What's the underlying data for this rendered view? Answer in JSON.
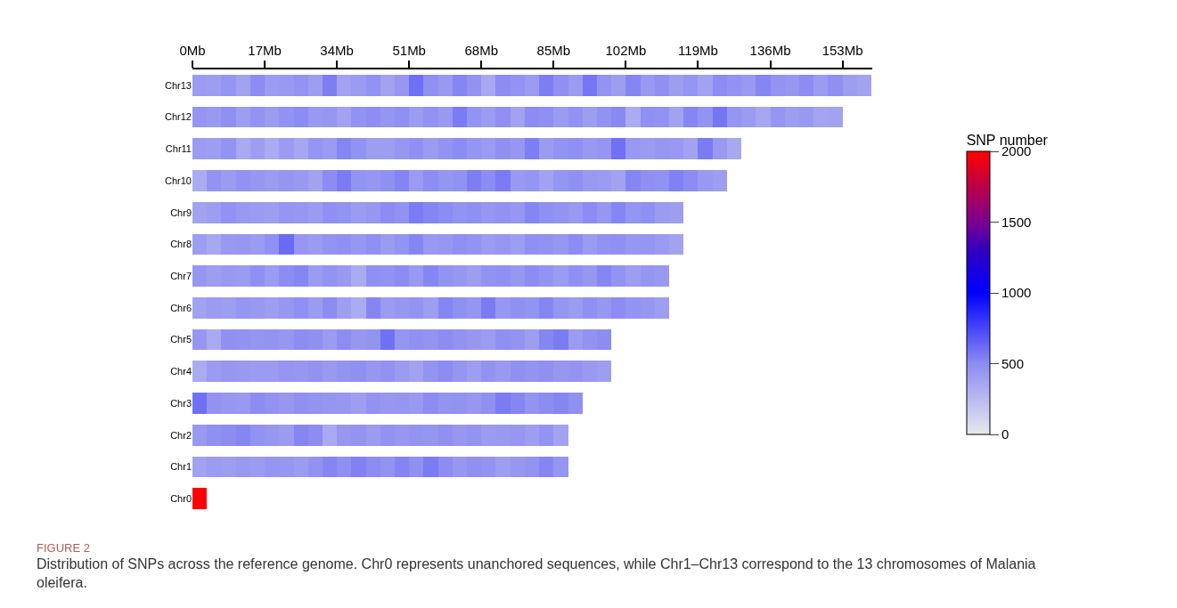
{
  "chart_data": {
    "type": "heatmap",
    "x": [
      1.7,
      5.1,
      8.5,
      11.9,
      15.3,
      18.7,
      22.1,
      25.5,
      28.9,
      32.3,
      35.7,
      39.1,
      42.5,
      45.9,
      49.3,
      52.7,
      56.1,
      59.5,
      62.9,
      66.3,
      69.7,
      73.1,
      76.5,
      79.9,
      83.3,
      86.7,
      90.1,
      93.5,
      96.9,
      100.3,
      103.7,
      107.1,
      110.5,
      113.9,
      117.3,
      120.7,
      124.1,
      127.5,
      130.9,
      134.3,
      137.7,
      141.1,
      144.5,
      147.9,
      151.3,
      154.7,
      158.1
    ],
    "y_categories": [
      "Chr13",
      "Chr12",
      "Chr11",
      "Chr10",
      "Chr9",
      "Chr8",
      "Chr7",
      "Chr6",
      "Chr5",
      "Chr4",
      "Chr3",
      "Chr2",
      "Chr1",
      "Chr0"
    ],
    "cells": [
      [
        420,
        400,
        450,
        380,
        500,
        420,
        430,
        460,
        400,
        550,
        380,
        420,
        470,
        380,
        440,
        600,
        480,
        430,
        520,
        470,
        350,
        500,
        460,
        420,
        550,
        480,
        420,
        580,
        460,
        400,
        520,
        430,
        480,
        400,
        450,
        380,
        500,
        470,
        430,
        520,
        460,
        440,
        500,
        420,
        480,
        400,
        380
      ],
      [
        450,
        430,
        480,
        400,
        460,
        420,
        470,
        500,
        430,
        440,
        380,
        470,
        490,
        450,
        480,
        420,
        470,
        430,
        560,
        460,
        420,
        480,
        380,
        500,
        480,
        420,
        470,
        400,
        470,
        510,
        330,
        480,
        470,
        380,
        520,
        460,
        580,
        450,
        420,
        360,
        450,
        400,
        430,
        370,
        380
      ],
      [
        420,
        400,
        460,
        340,
        400,
        330,
        420,
        360,
        450,
        420,
        520,
        470,
        410,
        400,
        440,
        480,
        420,
        460,
        500,
        450,
        420,
        480,
        440,
        550,
        420,
        460,
        480,
        430,
        450,
        600,
        430,
        420,
        440,
        430,
        380,
        560,
        430,
        350
      ],
      [
        330,
        460,
        420,
        470,
        440,
        420,
        450,
        430,
        380,
        500,
        560,
        460,
        440,
        480,
        530,
        420,
        490,
        450,
        470,
        550,
        500,
        560,
        430,
        450,
        380,
        450,
        480,
        430,
        420,
        380,
        520,
        480,
        470,
        540,
        500,
        430,
        400
      ],
      [
        380,
        400,
        470,
        430,
        420,
        400,
        450,
        440,
        420,
        480,
        460,
        420,
        440,
        500,
        470,
        560,
        520,
        500,
        460,
        480,
        440,
        470,
        440,
        520,
        480,
        460,
        430,
        500,
        440,
        520,
        450,
        480,
        420,
        400
      ],
      [
        400,
        350,
        430,
        440,
        420,
        480,
        620,
        440,
        420,
        460,
        480,
        440,
        480,
        420,
        460,
        520,
        430,
        440,
        480,
        460,
        420,
        440,
        400,
        480,
        470,
        440,
        500,
        420,
        470,
        480,
        440,
        450,
        420,
        380
      ],
      [
        440,
        400,
        430,
        420,
        480,
        420,
        500,
        520,
        420,
        460,
        430,
        330,
        480,
        470,
        500,
        430,
        520,
        460,
        440,
        400,
        470,
        480,
        440,
        500,
        460,
        420,
        480,
        440,
        520,
        460,
        400,
        450,
        430
      ],
      [
        380,
        420,
        400,
        450,
        430,
        410,
        440,
        480,
        420,
        500,
        400,
        330,
        520,
        420,
        440,
        460,
        400,
        520,
        480,
        450,
        560,
        440,
        480,
        460,
        520,
        450,
        420,
        480,
        440,
        500,
        460,
        440,
        400
      ],
      [
        440,
        340,
        480,
        470,
        450,
        460,
        440,
        500,
        480,
        420,
        500,
        440,
        460,
        600,
        450,
        480,
        460,
        500,
        470,
        440,
        420,
        480,
        460,
        400,
        520,
        560,
        420,
        470,
        500
      ],
      [
        330,
        420,
        440,
        430,
        420,
        420,
        450,
        440,
        470,
        430,
        460,
        480,
        440,
        470,
        420,
        380,
        460,
        500,
        450,
        410,
        470,
        430,
        480,
        460,
        480,
        440,
        460,
        430,
        400
      ],
      [
        600,
        470,
        440,
        430,
        500,
        470,
        440,
        480,
        460,
        450,
        440,
        400,
        470,
        440,
        450,
        430,
        500,
        460,
        470,
        440,
        480,
        560,
        520,
        460,
        500,
        520,
        480
      ],
      [
        430,
        480,
        500,
        520,
        470,
        440,
        420,
        520,
        500,
        340,
        440,
        460,
        420,
        470,
        440,
        460,
        450,
        480,
        440,
        460,
        420,
        430,
        440,
        400,
        460,
        380
      ],
      [
        380,
        420,
        400,
        430,
        420,
        450,
        440,
        420,
        470,
        520,
        480,
        540,
        500,
        460,
        530,
        480,
        560,
        500,
        440,
        480,
        460,
        400,
        440,
        460,
        520,
        450
      ],
      [
        2000
      ]
    ],
    "xlim": [
      0,
      160
    ],
    "xticks": [
      {
        "value": 0,
        "label": "0Mb"
      },
      {
        "value": 17,
        "label": "17Mb"
      },
      {
        "value": 34,
        "label": "34Mb"
      },
      {
        "value": 51,
        "label": "51Mb"
      },
      {
        "value": 68,
        "label": "68Mb"
      },
      {
        "value": 85,
        "label": "85Mb"
      },
      {
        "value": 102,
        "label": "102Mb"
      },
      {
        "value": 119,
        "label": "119Mb"
      },
      {
        "value": 136,
        "label": "136Mb"
      },
      {
        "value": 153,
        "label": "153Mb"
      }
    ],
    "clabel": "SNP number",
    "clim": [
      0,
      2000
    ],
    "cticks": [
      0,
      500,
      1000,
      1500,
      2000
    ],
    "annotations": [
      "FIGURE 2",
      "Distribution of SNPs across the reference genome. Chr0 represents unanchored sequences, while Chr1–Chr13 correspond to the 13 chromosomes of Malania oleifera."
    ]
  }
}
